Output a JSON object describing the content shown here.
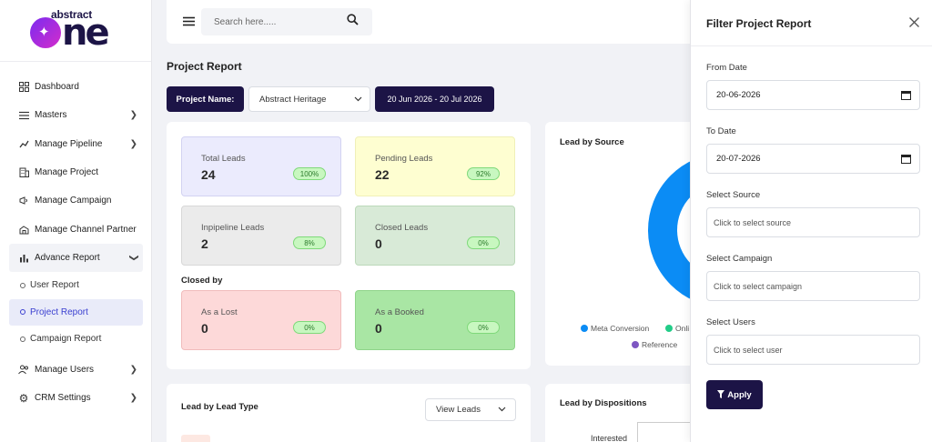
{
  "brand": {
    "top": "abstract",
    "bottom": "one"
  },
  "sidebar": {
    "items": [
      {
        "label": "Dashboard",
        "icon": "grid-icon"
      },
      {
        "label": "Masters",
        "icon": "list-icon"
      },
      {
        "label": "Manage Pipeline",
        "icon": "pipeline-icon"
      },
      {
        "label": "Manage Project",
        "icon": "building-icon"
      },
      {
        "label": "Manage Campaign",
        "icon": "megaphone-icon"
      },
      {
        "label": "Manage Channel Partner",
        "icon": "handshake-icon"
      },
      {
        "label": "Advance Report",
        "icon": "bar-chart-icon"
      }
    ],
    "subitems": [
      {
        "label": "User Report"
      },
      {
        "label": "Project Report"
      },
      {
        "label": "Campaign Report"
      }
    ],
    "bottom_items": [
      {
        "label": "Manage Users",
        "icon": "users-icon"
      },
      {
        "label": "CRM Settings",
        "icon": "gear-icon"
      }
    ]
  },
  "search": {
    "placeholder": "Search here....."
  },
  "page": {
    "title": "Project Report",
    "project_label": "Project Name:",
    "project_value": "Abstract Heritage",
    "date_range": "20 Jun 2026 - 20 Jul 2026"
  },
  "stats": {
    "total": {
      "label": "Total Leads",
      "value": "24",
      "pct": "100%"
    },
    "pending": {
      "label": "Pending Leads",
      "value": "22",
      "pct": "92%"
    },
    "inpipeline": {
      "label": "Inpipeline Leads",
      "value": "2",
      "pct": "8%"
    },
    "closed": {
      "label": "Closed Leads",
      "value": "0",
      "pct": "0%"
    },
    "closed_by": "Closed by",
    "lost": {
      "label": "As a Lost",
      "value": "0",
      "pct": "0%"
    },
    "booked": {
      "label": "As a Booked",
      "value": "0",
      "pct": "0%"
    }
  },
  "source_panel": {
    "title": "Lead by Source",
    "legend": [
      {
        "name": "Meta Conversion",
        "color": "#0b8cf5"
      },
      {
        "name": "Onli",
        "color": "#22cc88"
      },
      {
        "name": "Reference",
        "color": "#7e57c2"
      }
    ]
  },
  "leadtype_panel": {
    "title": "Lead by Lead Type",
    "view_label": "View Leads"
  },
  "disp_panel": {
    "title": "Lead by Dispositions",
    "row_label": "Interested"
  },
  "filter": {
    "title": "Filter Project Report",
    "from_label": "From Date",
    "from_value": "20-06-2026",
    "to_label": "To Date",
    "to_value": "20-07-2026",
    "source_label": "Select Source",
    "source_placeholder": "Click to select source",
    "campaign_label": "Select Campaign",
    "campaign_placeholder": "Click to select campaign",
    "users_label": "Select Users",
    "users_placeholder": "Click to select user",
    "apply_label": "Apply"
  }
}
